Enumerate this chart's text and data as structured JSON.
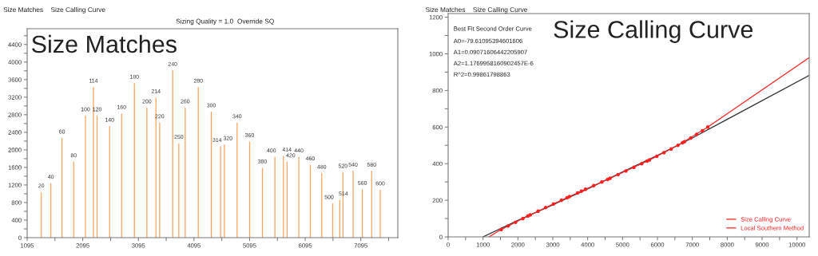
{
  "chart_data": [
    {
      "type": "bar",
      "title": "Size Matches",
      "annotations": [
        "Size Matches",
        "Size Calling Curve",
        "Sizing Quality = 1.0",
        "Override SQ",
        {
          "text": "20",
          "x": 1349,
          "y": 1040
        },
        {
          "text": "40",
          "x": 1521,
          "y": 1240
        },
        {
          "text": "60",
          "x": 1722,
          "y": 2270
        },
        {
          "text": "80",
          "x": 1932,
          "y": 1730
        },
        {
          "text": "100",
          "x": 2143,
          "y": 2780
        },
        {
          "text": "114",
          "x": 2286,
          "y": 3430
        },
        {
          "text": "120",
          "x": 2353,
          "y": 2780
        },
        {
          "text": "140",
          "x": 2578,
          "y": 2540
        },
        {
          "text": "160",
          "x": 2794,
          "y": 2830
        },
        {
          "text": "180",
          "x": 3023,
          "y": 3520
        },
        {
          "text": "200",
          "x": 3248,
          "y": 2960
        },
        {
          "text": "214",
          "x": 3411,
          "y": 3190
        },
        {
          "text": "220",
          "x": 3478,
          "y": 2620
        },
        {
          "text": "240",
          "x": 3712,
          "y": 3810
        },
        {
          "text": "250",
          "x": 3822,
          "y": 2150
        },
        {
          "text": "260",
          "x": 3937,
          "y": 2960
        },
        {
          "text": "280",
          "x": 4172,
          "y": 3430
        },
        {
          "text": "300",
          "x": 4406,
          "y": 2870
        },
        {
          "text": "314",
          "x": 4574,
          "y": 2080
        },
        {
          "text": "320",
          "x": 4641,
          "y": 2120
        },
        {
          "text": "340",
          "x": 4870,
          "y": 2620
        },
        {
          "text": "360",
          "x": 5095,
          "y": 2190
        },
        {
          "text": "380",
          "x": 5325,
          "y": 1590
        },
        {
          "text": "400",
          "x": 5550,
          "y": 1840
        },
        {
          "text": "414",
          "x": 5703,
          "y": 1860
        },
        {
          "text": "420",
          "x": 5770,
          "y": 1730
        },
        {
          "text": "440",
          "x": 5980,
          "y": 1840
        },
        {
          "text": "460",
          "x": 6186,
          "y": 1660
        },
        {
          "text": "480",
          "x": 6392,
          "y": 1470
        },
        {
          "text": "500",
          "x": 6588,
          "y": 780
        },
        {
          "text": "514",
          "x": 6717,
          "y": 860
        },
        {
          "text": "520",
          "x": 6774,
          "y": 1490
        },
        {
          "text": "540",
          "x": 6956,
          "y": 1520
        },
        {
          "text": "560",
          "x": 7123,
          "y": 1100
        },
        {
          "text": "580",
          "x": 7291,
          "y": 1520
        },
        {
          "text": "600",
          "x": 7444,
          "y": 1090
        }
      ],
      "x": [
        1349,
        1521,
        1722,
        1932,
        2143,
        2286,
        2353,
        2578,
        2794,
        3023,
        3248,
        3411,
        3478,
        3712,
        3822,
        3937,
        4172,
        4406,
        4574,
        4641,
        4870,
        5095,
        5325,
        5550,
        5703,
        5770,
        5980,
        6186,
        6392,
        6588,
        6717,
        6774,
        6956,
        7123,
        7291,
        7444
      ],
      "values": [
        1040,
        1240,
        2270,
        1730,
        2780,
        3430,
        2780,
        2540,
        2830,
        3520,
        2960,
        3190,
        2620,
        3810,
        2150,
        2960,
        3430,
        2870,
        2080,
        2120,
        2620,
        2190,
        1590,
        1840,
        1860,
        1730,
        1840,
        1660,
        1470,
        780,
        860,
        1490,
        1520,
        1100,
        1520,
        1090
      ],
      "color": "#f7a35c",
      "xlim": [
        1095,
        7760
      ],
      "xticks": [
        1095,
        {
          "value": 1595,
          "label": null
        },
        2095,
        {
          "value": 2595,
          "label": null
        },
        3095,
        {
          "value": 3595,
          "label": null
        },
        4095,
        {
          "value": 4595,
          "label": null
        },
        5095,
        {
          "value": 5595,
          "label": null
        },
        6095,
        {
          "value": 6595,
          "label": null
        },
        7095,
        {
          "value": 7595,
          "label": null
        }
      ],
      "ylim": [
        0,
        4760
      ],
      "yticks": [
        0,
        {
          "value": 200,
          "label": null
        },
        400,
        {
          "value": 600,
          "label": null
        },
        800,
        {
          "value": 1000,
          "label": null
        },
        1200,
        {
          "value": 1400,
          "label": null
        },
        1600,
        {
          "value": 1800,
          "label": null
        },
        2000,
        {
          "value": 2200,
          "label": null
        },
        2400,
        {
          "value": 2600,
          "label": null
        },
        2800,
        {
          "value": 3000,
          "label": null
        },
        3200,
        {
          "value": 3400,
          "label": null
        },
        3600,
        {
          "value": 3800,
          "label": null
        },
        4000,
        {
          "value": 4200,
          "label": null
        },
        4400,
        {
          "value": 4600,
          "label": null
        }
      ],
      "grid": false,
      "legend": false
    },
    {
      "type": "line",
      "title": "Size Calling Curve",
      "annotations": [
        "Size Matches",
        "Size Calling Curve",
        "Best Fit Second Order Curve",
        "A0=-79.61095394601606",
        "A1=0.09071606442205907",
        "A2=1.1769958160902457E-6",
        "R^2=0.99861798863"
      ],
      "series": [
        {
          "type": "line",
          "color": "#303030",
          "x": [
            1000,
            2000,
            3000,
            4000,
            5000,
            6000,
            7000,
            8000,
            10350
          ],
          "values": [
            0,
            90,
            175,
            262,
            355,
            445,
            540,
            642,
            882
          ]
        },
        {
          "type": "line",
          "name": "Size Calling Curve",
          "color": "#ff2020",
          "x": [
            1170,
            1521,
            2143,
            3023,
            3937,
            4870,
            5770,
            6588,
            7444,
            10350
          ],
          "values": [
            0,
            40,
            100,
            180,
            260,
            340,
            420,
            500,
            600,
            979
          ]
        },
        {
          "type": "scatter",
          "name": "Local Southern Method",
          "color": "#ff2020",
          "marker": "circle",
          "x": [
            1521,
            1722,
            1932,
            2143,
            2286,
            2353,
            2578,
            2794,
            3023,
            3248,
            3411,
            3478,
            3712,
            3822,
            3937,
            4172,
            4406,
            4574,
            4641,
            4870,
            5095,
            5325,
            5550,
            5703,
            5770,
            5980,
            6186,
            6392,
            6588,
            6717,
            6774,
            6956,
            7123,
            7291,
            7444
          ],
          "values": [
            40,
            60,
            80,
            100,
            114,
            120,
            140,
            160,
            180,
            200,
            214,
            220,
            240,
            250,
            260,
            280,
            300,
            314,
            320,
            340,
            360,
            380,
            400,
            414,
            420,
            440,
            460,
            480,
            500,
            514,
            520,
            540,
            560,
            580,
            600
          ]
        }
      ],
      "xlim": [
        0,
        10350
      ],
      "xticks": [
        0,
        {
          "value": 500,
          "label": null
        },
        1000,
        {
          "value": 1500,
          "label": null
        },
        2000,
        {
          "value": 2500,
          "label": null
        },
        3000,
        {
          "value": 3500,
          "label": null
        },
        4000,
        {
          "value": 4500,
          "label": null
        },
        5000,
        {
          "value": 5500,
          "label": null
        },
        6000,
        {
          "value": 6500,
          "label": null
        },
        7000,
        {
          "value": 7500,
          "label": null
        },
        8000,
        {
          "value": 8500,
          "label": null
        },
        9000,
        {
          "value": 9500,
          "label": null
        },
        10000
      ],
      "ylim": [
        0,
        1220
      ],
      "yticks": [
        0,
        {
          "value": 100,
          "label": null
        },
        200,
        {
          "value": 300,
          "label": null
        },
        400,
        {
          "value": 500,
          "label": null
        },
        600,
        {
          "value": 700,
          "label": null
        },
        800,
        {
          "value": 900,
          "label": null
        },
        1000,
        {
          "value": 1100,
          "label": null
        },
        1200
      ],
      "grid": false,
      "legend": "bottom right"
    }
  ]
}
